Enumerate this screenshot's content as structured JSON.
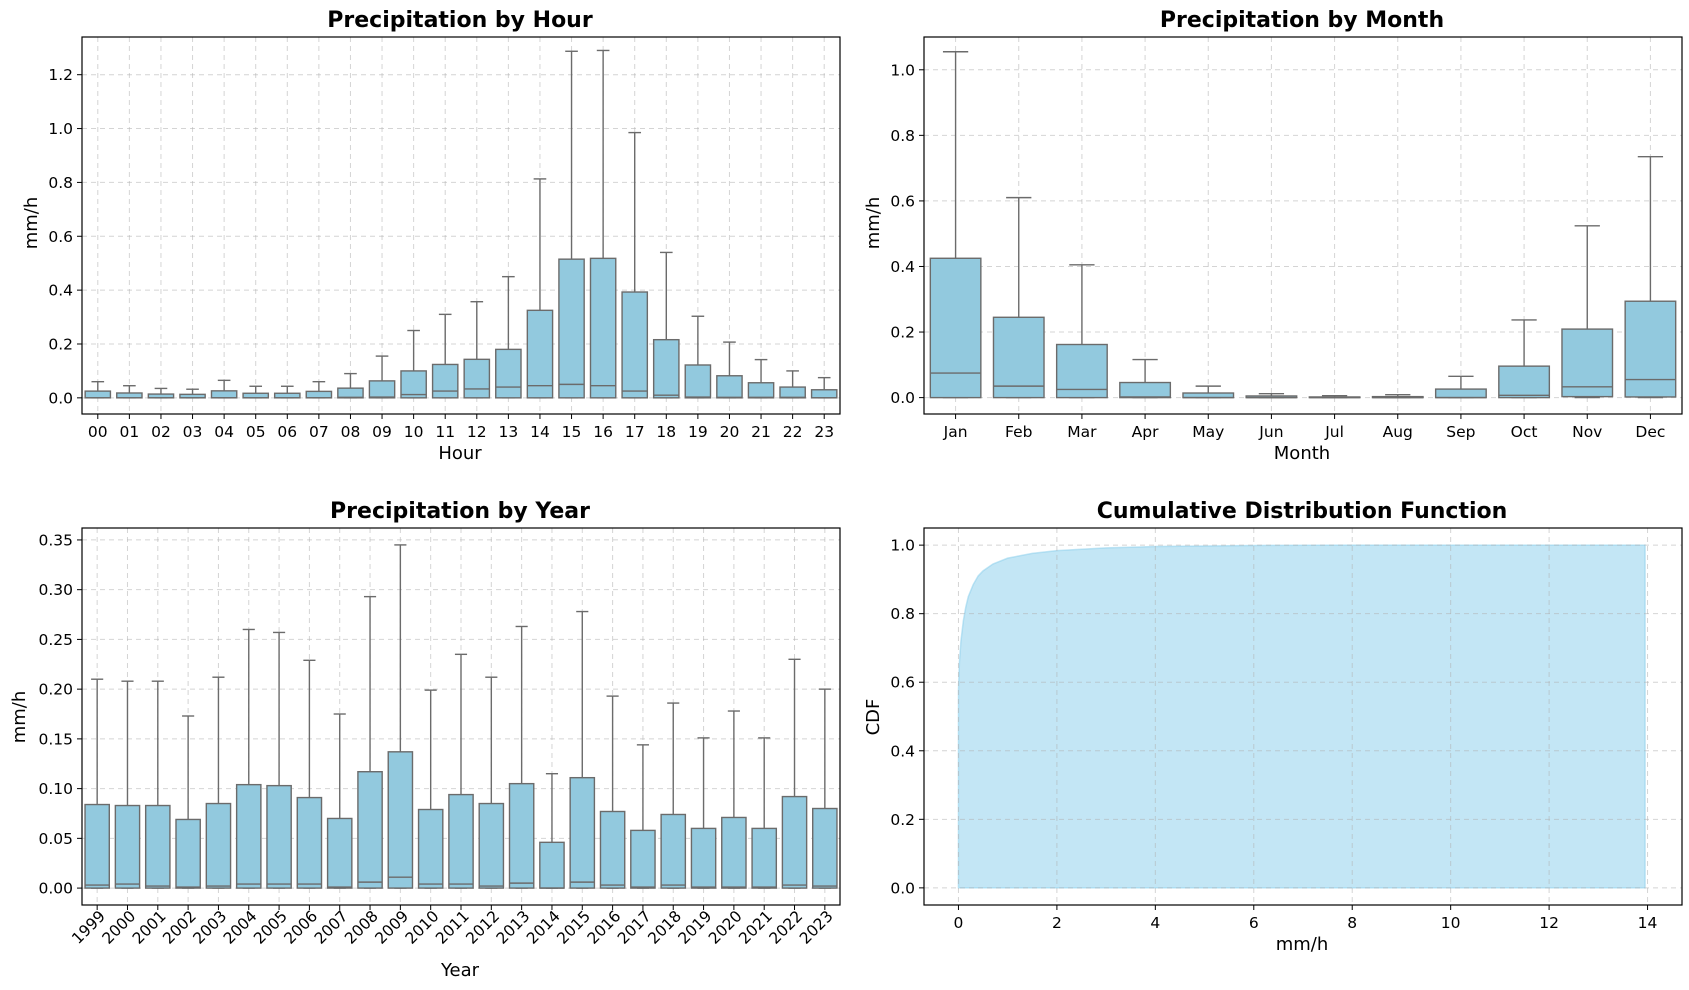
{
  "chart_data": [
    {
      "id": "hour",
      "type": "box",
      "title": "Precipitation by Hour",
      "xlabel": "Hour",
      "ylabel": "mm/h",
      "ylim": [
        -0.06,
        1.34
      ],
      "yticks": [
        0.0,
        0.2,
        0.4,
        0.6,
        0.8,
        1.0,
        1.2
      ],
      "ytick_labels": [
        "0.0",
        "0.2",
        "0.4",
        "0.6",
        "0.8",
        "1.0",
        "1.2"
      ],
      "rotate_xticks": false,
      "categories": [
        "00",
        "01",
        "02",
        "03",
        "04",
        "05",
        "06",
        "07",
        "08",
        "09",
        "10",
        "11",
        "12",
        "13",
        "14",
        "15",
        "16",
        "17",
        "18",
        "19",
        "20",
        "21",
        "22",
        "23"
      ],
      "boxes": [
        {
          "q1": 0,
          "median": 0.0,
          "q3": 0.025,
          "whisker_high": 0.06
        },
        {
          "q1": 0,
          "median": 0.0,
          "q3": 0.018,
          "whisker_high": 0.045
        },
        {
          "q1": 0,
          "median": 0.0,
          "q3": 0.014,
          "whisker_high": 0.035
        },
        {
          "q1": 0,
          "median": 0.0,
          "q3": 0.013,
          "whisker_high": 0.032
        },
        {
          "q1": 0,
          "median": 0.0,
          "q3": 0.026,
          "whisker_high": 0.065
        },
        {
          "q1": 0,
          "median": 0.0,
          "q3": 0.017,
          "whisker_high": 0.043
        },
        {
          "q1": 0,
          "median": 0.0,
          "q3": 0.017,
          "whisker_high": 0.043
        },
        {
          "q1": 0,
          "median": 0.0,
          "q3": 0.024,
          "whisker_high": 0.06
        },
        {
          "q1": 0,
          "median": 0.002,
          "q3": 0.036,
          "whisker_high": 0.09
        },
        {
          "q1": 0,
          "median": 0.003,
          "q3": 0.063,
          "whisker_high": 0.155
        },
        {
          "q1": 0,
          "median": 0.012,
          "q3": 0.1,
          "whisker_high": 0.25
        },
        {
          "q1": 0,
          "median": 0.025,
          "q3": 0.124,
          "whisker_high": 0.31
        },
        {
          "q1": 0,
          "median": 0.033,
          "q3": 0.143,
          "whisker_high": 0.357
        },
        {
          "q1": 0,
          "median": 0.04,
          "q3": 0.18,
          "whisker_high": 0.45
        },
        {
          "q1": 0,
          "median": 0.045,
          "q3": 0.325,
          "whisker_high": 0.813
        },
        {
          "q1": 0,
          "median": 0.05,
          "q3": 0.515,
          "whisker_high": 1.287
        },
        {
          "q1": 0,
          "median": 0.045,
          "q3": 0.518,
          "whisker_high": 1.29
        },
        {
          "q1": 0,
          "median": 0.025,
          "q3": 0.393,
          "whisker_high": 0.985
        },
        {
          "q1": 0,
          "median": 0.01,
          "q3": 0.216,
          "whisker_high": 0.54
        },
        {
          "q1": 0,
          "median": 0.003,
          "q3": 0.122,
          "whisker_high": 0.303
        },
        {
          "q1": 0,
          "median": 0.002,
          "q3": 0.082,
          "whisker_high": 0.207
        },
        {
          "q1": 0,
          "median": 0.002,
          "q3": 0.056,
          "whisker_high": 0.142
        },
        {
          "q1": 0,
          "median": 0.002,
          "q3": 0.04,
          "whisker_high": 0.1
        },
        {
          "q1": 0,
          "median": 0.0,
          "q3": 0.03,
          "whisker_high": 0.075
        }
      ]
    },
    {
      "id": "month",
      "type": "box",
      "title": "Precipitation by Month",
      "xlabel": "Month",
      "ylabel": "mm/h",
      "ylim": [
        -0.05,
        1.1
      ],
      "yticks": [
        0.0,
        0.2,
        0.4,
        0.6,
        0.8,
        1.0
      ],
      "ytick_labels": [
        "0.0",
        "0.2",
        "0.4",
        "0.6",
        "0.8",
        "1.0"
      ],
      "rotate_xticks": false,
      "categories": [
        "Jan",
        "Feb",
        "Mar",
        "Apr",
        "May",
        "Jun",
        "Jul",
        "Aug",
        "Sep",
        "Oct",
        "Nov",
        "Dec"
      ],
      "boxes": [
        {
          "q1": 0,
          "median": 0.075,
          "q3": 0.425,
          "whisker_high": 1.055
        },
        {
          "q1": 0,
          "median": 0.035,
          "q3": 0.245,
          "whisker_high": 0.61
        },
        {
          "q1": 0,
          "median": 0.025,
          "q3": 0.162,
          "whisker_high": 0.405
        },
        {
          "q1": 0,
          "median": 0.002,
          "q3": 0.046,
          "whisker_high": 0.116
        },
        {
          "q1": 0,
          "median": 0.0,
          "q3": 0.014,
          "whisker_high": 0.035
        },
        {
          "q1": 0,
          "median": 0.0,
          "q3": 0.005,
          "whisker_high": 0.012
        },
        {
          "q1": 0,
          "median": 0.0,
          "q3": 0.002,
          "whisker_high": 0.006
        },
        {
          "q1": 0,
          "median": 0.0,
          "q3": 0.003,
          "whisker_high": 0.009
        },
        {
          "q1": 0,
          "median": 0.0,
          "q3": 0.026,
          "whisker_high": 0.065
        },
        {
          "q1": 0,
          "median": 0.007,
          "q3": 0.096,
          "whisker_high": 0.237
        },
        {
          "q1": 0.003,
          "median": 0.033,
          "q3": 0.209,
          "whisker_high": 0.524
        },
        {
          "q1": 0.002,
          "median": 0.055,
          "q3": 0.294,
          "whisker_high": 0.735
        }
      ]
    },
    {
      "id": "year",
      "type": "box",
      "title": "Precipitation by Year",
      "xlabel": "Year",
      "ylabel": "mm/h",
      "ylim": [
        -0.017,
        0.362
      ],
      "yticks": [
        0.0,
        0.05,
        0.1,
        0.15,
        0.2,
        0.25,
        0.3,
        0.35
      ],
      "ytick_labels": [
        "0.00",
        "0.05",
        "0.10",
        "0.15",
        "0.20",
        "0.25",
        "0.30",
        "0.35"
      ],
      "rotate_xticks": true,
      "categories": [
        "1999",
        "2000",
        "2001",
        "2002",
        "2003",
        "2004",
        "2005",
        "2006",
        "2007",
        "2008",
        "2009",
        "2010",
        "2011",
        "2012",
        "2013",
        "2014",
        "2015",
        "2016",
        "2017",
        "2018",
        "2019",
        "2020",
        "2021",
        "2022",
        "2023"
      ],
      "boxes": [
        {
          "q1": 0,
          "median": 0.003,
          "q3": 0.084,
          "whisker_high": 0.21
        },
        {
          "q1": 0,
          "median": 0.004,
          "q3": 0.083,
          "whisker_high": 0.208
        },
        {
          "q1": 0,
          "median": 0.002,
          "q3": 0.083,
          "whisker_high": 0.208
        },
        {
          "q1": 0,
          "median": 0.001,
          "q3": 0.069,
          "whisker_high": 0.173
        },
        {
          "q1": 0,
          "median": 0.002,
          "q3": 0.085,
          "whisker_high": 0.212
        },
        {
          "q1": 0,
          "median": 0.004,
          "q3": 0.104,
          "whisker_high": 0.26
        },
        {
          "q1": 0,
          "median": 0.004,
          "q3": 0.103,
          "whisker_high": 0.257
        },
        {
          "q1": 0,
          "median": 0.004,
          "q3": 0.091,
          "whisker_high": 0.229
        },
        {
          "q1": 0,
          "median": 0.001,
          "q3": 0.07,
          "whisker_high": 0.175
        },
        {
          "q1": 0,
          "median": 0.006,
          "q3": 0.117,
          "whisker_high": 0.293
        },
        {
          "q1": 0,
          "median": 0.011,
          "q3": 0.137,
          "whisker_high": 0.345
        },
        {
          "q1": 0,
          "median": 0.004,
          "q3": 0.079,
          "whisker_high": 0.199
        },
        {
          "q1": 0,
          "median": 0.004,
          "q3": 0.094,
          "whisker_high": 0.235
        },
        {
          "q1": 0,
          "median": 0.002,
          "q3": 0.085,
          "whisker_high": 0.212
        },
        {
          "q1": 0,
          "median": 0.005,
          "q3": 0.105,
          "whisker_high": 0.263
        },
        {
          "q1": 0,
          "median": 0.0,
          "q3": 0.046,
          "whisker_high": 0.115
        },
        {
          "q1": 0,
          "median": 0.006,
          "q3": 0.111,
          "whisker_high": 0.278
        },
        {
          "q1": 0,
          "median": 0.003,
          "q3": 0.077,
          "whisker_high": 0.193
        },
        {
          "q1": 0,
          "median": 0.001,
          "q3": 0.058,
          "whisker_high": 0.144
        },
        {
          "q1": 0,
          "median": 0.003,
          "q3": 0.074,
          "whisker_high": 0.186
        },
        {
          "q1": 0,
          "median": 0.001,
          "q3": 0.06,
          "whisker_high": 0.151
        },
        {
          "q1": 0,
          "median": 0.001,
          "q3": 0.071,
          "whisker_high": 0.178
        },
        {
          "q1": 0,
          "median": 0.001,
          "q3": 0.06,
          "whisker_high": 0.151
        },
        {
          "q1": 0,
          "median": 0.003,
          "q3": 0.092,
          "whisker_high": 0.23
        },
        {
          "q1": 0,
          "median": 0.002,
          "q3": 0.08,
          "whisker_high": 0.2
        }
      ]
    },
    {
      "id": "cdf",
      "type": "area",
      "title": "Cumulative Distribution Function",
      "xlabel": "mm/h",
      "ylabel": "CDF",
      "xlim": [
        -0.7,
        14.7
      ],
      "ylim": [
        -0.05,
        1.05
      ],
      "xticks": [
        0,
        2,
        4,
        6,
        8,
        10,
        12,
        14
      ],
      "xtick_labels": [
        "0",
        "2",
        "4",
        "6",
        "8",
        "10",
        "12",
        "14"
      ],
      "yticks": [
        0.0,
        0.2,
        0.4,
        0.6,
        0.8,
        1.0
      ],
      "ytick_labels": [
        "0.0",
        "0.2",
        "0.4",
        "0.6",
        "0.8",
        "1.0"
      ],
      "x": [
        0,
        0.001,
        0.02,
        0.05,
        0.1,
        0.15,
        0.2,
        0.3,
        0.4,
        0.5,
        0.7,
        1.0,
        1.5,
        2.0,
        3.0,
        4.0,
        6.0,
        8.0,
        10.0,
        12.0,
        13.95
      ],
      "y": [
        0,
        0.58,
        0.66,
        0.72,
        0.78,
        0.82,
        0.85,
        0.885,
        0.91,
        0.925,
        0.945,
        0.962,
        0.976,
        0.984,
        0.992,
        0.996,
        0.999,
        1.0,
        1.0,
        1.0,
        1.0
      ],
      "fill_color": "#87ceeb"
    }
  ]
}
